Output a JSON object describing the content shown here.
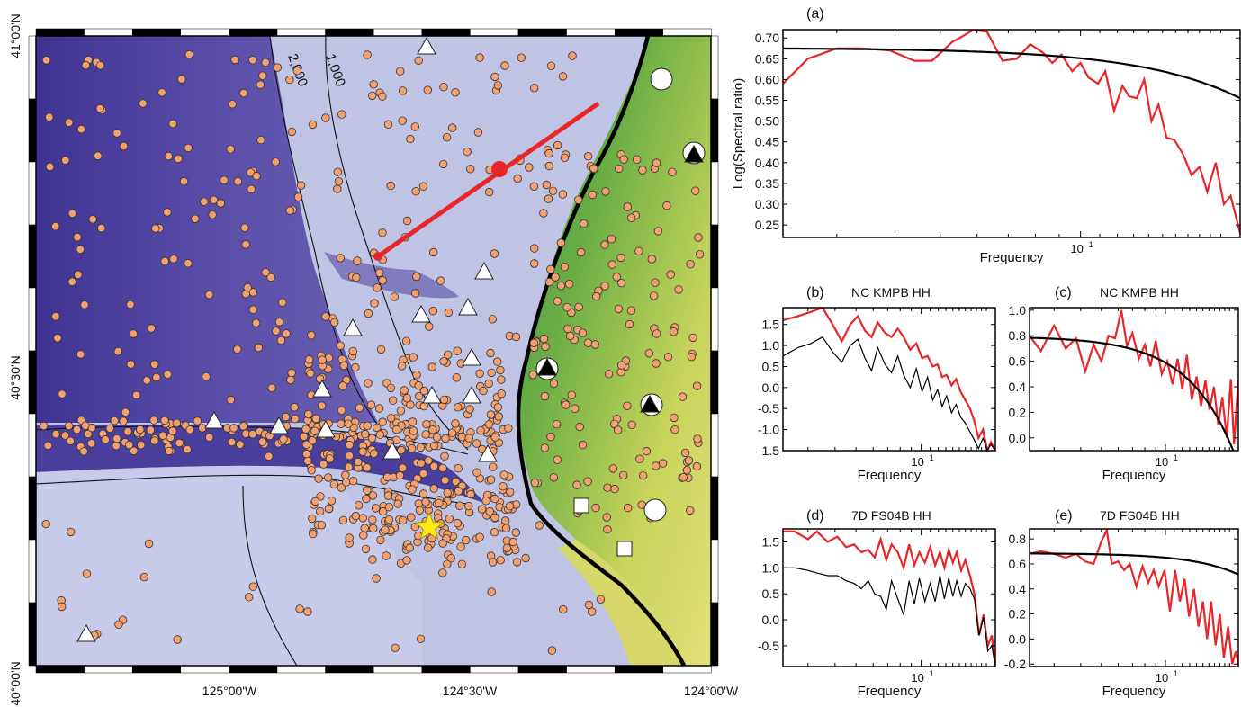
{
  "colors": {
    "ocean_deep": "#3d2f8f",
    "ocean_shelf": "#b9bde3",
    "land_low": "#d8d860",
    "land_high": "#2f8a3c",
    "seismicity": "#f2a070",
    "profile_line": "#e8262a",
    "fit_line": "#000000",
    "ratio_line": "#e8262a"
  },
  "map": {
    "lat_labels": [
      "41°00'N",
      "40°30'N",
      "40°00'N"
    ],
    "lon_labels": [
      "125°00'W",
      "124°30'W",
      "124°00'W"
    ],
    "contour_labels": [
      "2,000",
      "1,000"
    ],
    "icons": [
      "seismicity-circle-icon",
      "station-triangle-icon",
      "station-filled-triangle-icon",
      "station-circle-icon",
      "station-square-icon",
      "epicenter-star-icon"
    ]
  },
  "chart_data": [
    {
      "panel": "(a)",
      "type": "line",
      "title": "",
      "xlabel": "Frequency",
      "ylabel": "Log(Spectral ratio)",
      "xscale": "log",
      "xlim": [
        2.3,
        22
      ],
      "ylim": [
        0.22,
        0.72
      ],
      "yticks": [
        0.25,
        0.3,
        0.35,
        0.4,
        0.45,
        0.5,
        0.55,
        0.6,
        0.65,
        0.7
      ],
      "ytick_labels": [
        "0.25",
        "0.30",
        "0.35",
        "0.40",
        "0.45",
        "0.50",
        "0.55",
        "0.60",
        "0.65",
        "0.70"
      ],
      "xtick_labels": [
        "10"
      ],
      "xtick_sup": [
        "1"
      ],
      "series": [
        {
          "kind": "ratio",
          "color": "#e8262a",
          "x": [
            2.3,
            2.6,
            3.0,
            3.4,
            3.9,
            4.4,
            4.8,
            5.3,
            5.6,
            5.9,
            6.3,
            6.8,
            7.3,
            7.8,
            8.3,
            8.7,
            9.1,
            9.6,
            10.0,
            10.4,
            10.9,
            11.3,
            11.8,
            12.3,
            12.7,
            13.2,
            13.7,
            14.2,
            14.7,
            15.3,
            15.9,
            16.6,
            17.3,
            18.0,
            18.7,
            19.5,
            20.3,
            21.0,
            22.0
          ],
          "y": [
            0.59,
            0.65,
            0.675,
            0.675,
            0.67,
            0.645,
            0.645,
            0.69,
            0.705,
            0.72,
            0.715,
            0.645,
            0.65,
            0.685,
            0.665,
            0.64,
            0.66,
            0.62,
            0.64,
            0.605,
            0.59,
            0.62,
            0.525,
            0.585,
            0.56,
            0.555,
            0.6,
            0.5,
            0.54,
            0.46,
            0.455,
            0.42,
            0.37,
            0.39,
            0.33,
            0.4,
            0.3,
            0.32,
            0.23
          ]
        },
        {
          "kind": "fit",
          "color": "#000000",
          "fit": {
            "A": 0.676,
            "fc": 11.5,
            "slope": 0.033
          }
        }
      ]
    },
    {
      "panel": "(b)",
      "type": "line",
      "title": "NC   KMPB HH",
      "xlabel": "Frequency",
      "ylabel": "",
      "xscale": "log",
      "xlim": [
        2.3,
        22
      ],
      "ylim": [
        -1.5,
        1.9
      ],
      "yticks": [
        -1.5,
        -1.0,
        -0.5,
        0.0,
        0.5,
        1.0,
        1.5
      ],
      "ytick_labels": [
        "-1.5",
        "-1.0",
        "-0.5",
        "0.0",
        "0.5",
        "1.0",
        "1.5"
      ],
      "xtick_labels": [
        "10"
      ],
      "xtick_sup": [
        "1"
      ],
      "series": [
        {
          "kind": "spectrum",
          "color": "#e8262a",
          "x": [
            2.3,
            2.7,
            3.1,
            3.5,
            3.9,
            4.3,
            4.7,
            5.1,
            5.5,
            5.9,
            6.3,
            6.8,
            7.3,
            7.8,
            8.3,
            8.9,
            9.5,
            10.1,
            10.7,
            11.3,
            11.9,
            12.5,
            13.1,
            13.8,
            14.5,
            15.2,
            16.0,
            16.8,
            17.6,
            18.4,
            19.3,
            20.2,
            21.0,
            22.0
          ],
          "y": [
            1.6,
            1.7,
            1.8,
            1.9,
            1.5,
            1.1,
            1.5,
            1.7,
            1.35,
            1.2,
            1.55,
            1.3,
            1.2,
            1.4,
            1.2,
            0.9,
            1.05,
            0.7,
            0.75,
            0.5,
            0.55,
            0.25,
            0.3,
            0.05,
            0.2,
            -0.1,
            -0.3,
            -0.5,
            -0.8,
            -1.2,
            -1.0,
            -1.5,
            -1.3,
            -1.5
          ]
        },
        {
          "kind": "noise",
          "color": "#000000",
          "x": [
            2.3,
            2.7,
            3.1,
            3.5,
            3.9,
            4.3,
            4.7,
            5.1,
            5.5,
            5.9,
            6.3,
            6.8,
            7.3,
            7.8,
            8.3,
            8.9,
            9.5,
            10.1,
            10.7,
            11.3,
            11.9,
            12.5,
            13.1,
            13.8,
            14.5,
            15.2,
            16.0,
            16.8,
            17.6,
            18.4,
            19.3,
            20.2,
            21.0,
            22.0
          ],
          "y": [
            0.75,
            0.95,
            1.05,
            1.2,
            0.85,
            0.6,
            1.0,
            1.15,
            0.7,
            0.4,
            0.95,
            0.55,
            0.35,
            0.75,
            0.3,
            0.0,
            0.45,
            -0.1,
            0.25,
            -0.3,
            -0.05,
            -0.45,
            -0.2,
            -0.6,
            -0.4,
            -0.7,
            -0.85,
            -1.05,
            -1.25,
            -1.45,
            -1.2,
            -1.5,
            -1.35,
            -1.5
          ]
        }
      ]
    },
    {
      "panel": "(c)",
      "type": "line",
      "title": "NC   KMPB HH",
      "xlabel": "Frequency",
      "ylabel": "",
      "xscale": "log",
      "xlim": [
        2.3,
        22
      ],
      "ylim": [
        -0.1,
        1.02
      ],
      "yticks": [
        0.0,
        0.2,
        0.4,
        0.6,
        0.8,
        1.0
      ],
      "ytick_labels": [
        "0.0",
        "0.2",
        "0.4",
        "0.6",
        "0.8",
        "1.0"
      ],
      "xtick_labels": [
        "10"
      ],
      "xtick_sup": [
        "1"
      ],
      "series": [
        {
          "kind": "ratio",
          "color": "#e8262a",
          "x": [
            2.3,
            2.6,
            3.0,
            3.4,
            3.8,
            4.2,
            4.6,
            5.0,
            5.4,
            5.8,
            6.2,
            6.6,
            7.0,
            7.5,
            8.0,
            8.5,
            9.0,
            9.6,
            10.2,
            10.8,
            11.4,
            12.0,
            12.6,
            13.3,
            14.0,
            14.7,
            15.4,
            16.1,
            16.9,
            17.7,
            18.5,
            19.4,
            20.3,
            21.0,
            22.0
          ],
          "y": [
            0.8,
            0.68,
            0.88,
            0.7,
            0.78,
            0.52,
            0.73,
            0.6,
            0.8,
            0.78,
            1.0,
            0.72,
            0.82,
            0.62,
            0.73,
            0.56,
            0.76,
            0.5,
            0.6,
            0.42,
            0.62,
            0.38,
            0.65,
            0.3,
            0.48,
            0.25,
            0.45,
            0.22,
            0.4,
            0.1,
            0.32,
            0.0,
            0.46,
            -0.05,
            0.45
          ]
        },
        {
          "kind": "fit",
          "color": "#000000",
          "fit": {
            "A": 0.795,
            "fc": 11.0,
            "slope": 0.25
          }
        }
      ]
    },
    {
      "panel": "(d)",
      "type": "line",
      "title": "7D   FS04B HH",
      "xlabel": "Frequency",
      "ylabel": "",
      "xscale": "log",
      "xlim": [
        2.3,
        22
      ],
      "ylim": [
        -0.9,
        1.75
      ],
      "yticks": [
        -0.5,
        0.0,
        0.5,
        1.0,
        1.5
      ],
      "ytick_labels": [
        "-0.5",
        "0.0",
        "0.5",
        "1.0",
        "1.5"
      ],
      "xtick_labels": [
        "10"
      ],
      "xtick_sup": [
        "1"
      ],
      "series": [
        {
          "kind": "spectrum",
          "color": "#e8262a",
          "x": [
            2.3,
            2.6,
            3.0,
            3.3,
            3.7,
            4.1,
            4.5,
            4.9,
            5.3,
            5.7,
            6.1,
            6.5,
            6.9,
            7.3,
            7.8,
            8.3,
            8.8,
            9.3,
            9.8,
            10.4,
            11.0,
            11.6,
            12.2,
            12.8,
            13.4,
            14.0,
            14.6,
            15.3,
            16.0,
            16.8,
            17.6,
            18.5,
            19.4,
            20.3,
            21.2,
            22.0
          ],
          "y": [
            1.7,
            1.7,
            1.55,
            1.7,
            1.5,
            1.6,
            1.4,
            1.45,
            1.3,
            1.35,
            1.2,
            1.55,
            1.15,
            1.45,
            1.3,
            1.0,
            1.45,
            1.05,
            1.3,
            1.1,
            1.4,
            1.05,
            1.3,
            1.0,
            1.35,
            1.1,
            1.3,
            0.95,
            1.15,
            0.85,
            0.5,
            -0.3,
            0.1,
            -0.5,
            -0.3,
            -0.9
          ]
        },
        {
          "kind": "noise",
          "color": "#000000",
          "x": [
            2.3,
            2.6,
            3.0,
            3.3,
            3.7,
            4.1,
            4.5,
            4.9,
            5.3,
            5.7,
            6.1,
            6.5,
            6.9,
            7.3,
            7.8,
            8.3,
            8.8,
            9.3,
            9.8,
            10.4,
            11.0,
            11.6,
            12.2,
            12.8,
            13.4,
            14.0,
            14.6,
            15.3,
            16.0,
            16.8,
            17.6,
            18.5,
            19.4,
            20.3,
            21.2,
            22.0
          ],
          "y": [
            1.0,
            1.0,
            0.95,
            0.9,
            0.85,
            0.85,
            0.75,
            0.7,
            0.6,
            0.75,
            0.5,
            0.45,
            0.2,
            0.75,
            0.4,
            0.1,
            0.75,
            0.3,
            0.8,
            0.35,
            0.7,
            0.35,
            0.85,
            0.4,
            0.8,
            0.45,
            0.75,
            0.45,
            0.7,
            0.6,
            0.4,
            -0.3,
            0.05,
            -0.6,
            -0.5,
            -0.9
          ]
        }
      ]
    },
    {
      "panel": "(e)",
      "type": "line",
      "title": "7D   FS04B HH",
      "xlabel": "Frequency",
      "ylabel": "",
      "xscale": "log",
      "xlim": [
        2.3,
        22
      ],
      "ylim": [
        -0.22,
        0.88
      ],
      "yticks": [
        -0.2,
        0.0,
        0.2,
        0.4,
        0.6,
        0.8
      ],
      "ytick_labels": [
        "-0.2",
        "0.0",
        "0.2",
        "0.4",
        "0.6",
        "0.8"
      ],
      "xtick_labels": [
        "10"
      ],
      "xtick_sup": [
        "1"
      ],
      "series": [
        {
          "kind": "ratio",
          "color": "#e8262a",
          "x": [
            2.3,
            2.6,
            3.0,
            3.4,
            3.8,
            4.2,
            4.6,
            5.0,
            5.3,
            5.6,
            6.0,
            6.4,
            6.8,
            7.3,
            7.8,
            8.3,
            8.8,
            9.3,
            9.9,
            10.5,
            11.1,
            11.7,
            12.3,
            12.9,
            13.6,
            14.3,
            15.0,
            15.7,
            16.4,
            17.2,
            18.0,
            18.8,
            19.7,
            20.6,
            21.4,
            22.0
          ],
          "y": [
            0.68,
            0.7,
            0.68,
            0.65,
            0.68,
            0.62,
            0.6,
            0.78,
            0.87,
            0.6,
            0.62,
            0.55,
            0.6,
            0.42,
            0.58,
            0.45,
            0.55,
            0.42,
            0.55,
            0.22,
            0.55,
            0.3,
            0.48,
            0.18,
            0.4,
            0.1,
            0.3,
            0.0,
            0.3,
            -0.05,
            0.2,
            -0.15,
            0.1,
            -0.2,
            -0.1,
            -0.2
          ]
        },
        {
          "kind": "fit",
          "color": "#000000",
          "fit": {
            "A": 0.685,
            "fc": 10.0,
            "slope": 0.035
          }
        }
      ]
    }
  ]
}
